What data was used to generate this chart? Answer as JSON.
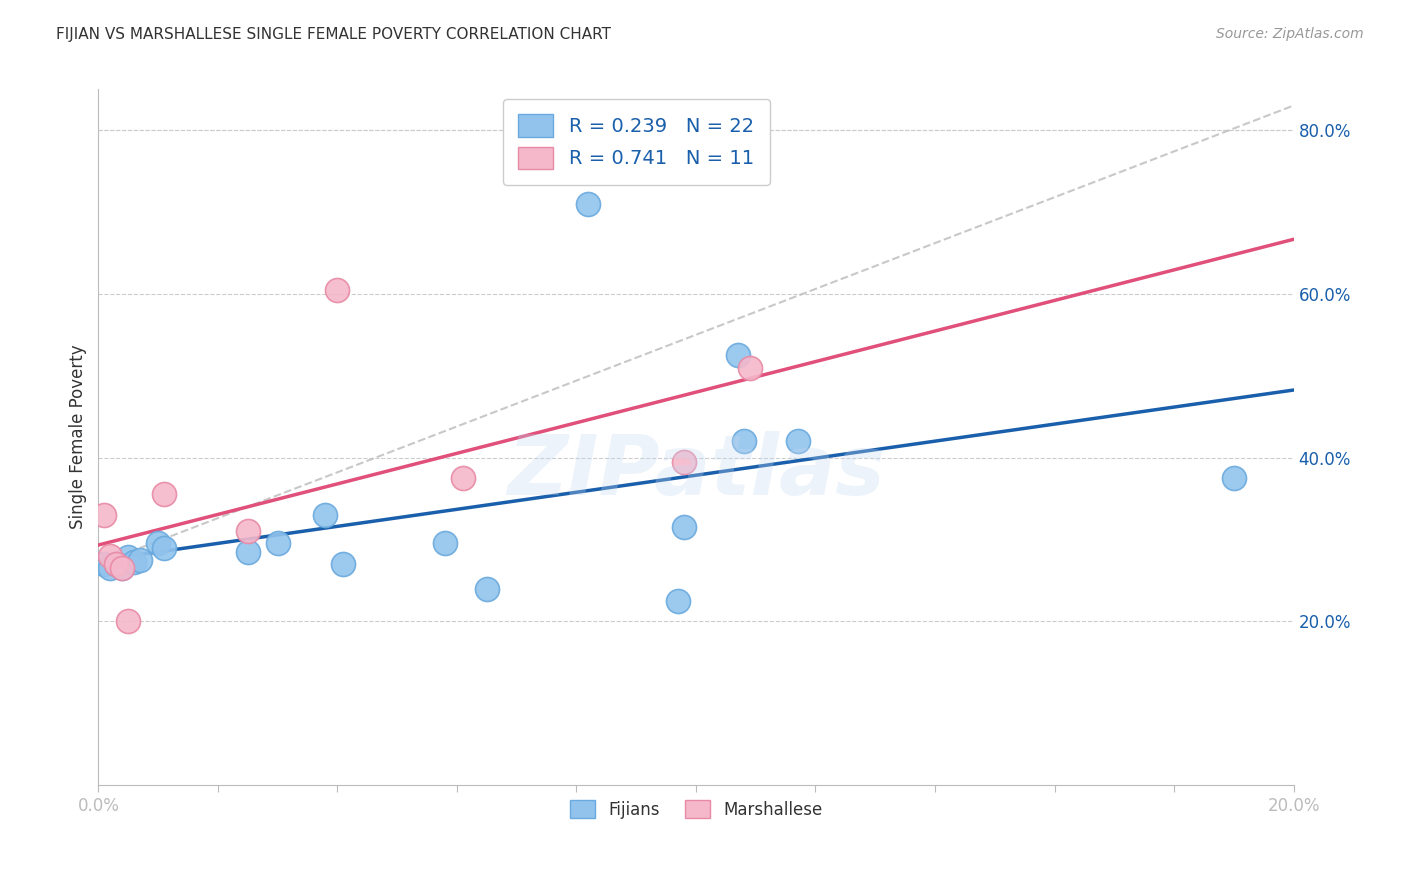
{
  "title": "FIJIAN VS MARSHALLESE SINGLE FEMALE POVERTY CORRELATION CHART",
  "source": "Source: ZipAtlas.com",
  "ylabel_label": "Single Female Poverty",
  "xlim": [
    0.0,
    0.2
  ],
  "ylim": [
    0.0,
    0.85
  ],
  "xtick_positions": [
    0.0,
    0.02,
    0.04,
    0.06,
    0.08,
    0.1,
    0.12,
    0.14,
    0.16,
    0.18,
    0.2
  ],
  "xtick_labels_show": [
    "0.0%",
    "",
    "",
    "",
    "",
    "",
    "",
    "",
    "",
    "",
    "20.0%"
  ],
  "ytick_positions": [
    0.2,
    0.4,
    0.6,
    0.8
  ],
  "ytick_labels": [
    "20.0%",
    "40.0%",
    "60.0%",
    "80.0%"
  ],
  "fijians_x": [
    0.001,
    0.002,
    0.003,
    0.004,
    0.005,
    0.006,
    0.007,
    0.01,
    0.011,
    0.025,
    0.03,
    0.038,
    0.041,
    0.058,
    0.065,
    0.082,
    0.097,
    0.098,
    0.107,
    0.108,
    0.117,
    0.19
  ],
  "fijians_y": [
    0.27,
    0.265,
    0.27,
    0.265,
    0.278,
    0.272,
    0.275,
    0.295,
    0.29,
    0.285,
    0.295,
    0.33,
    0.27,
    0.295,
    0.24,
    0.71,
    0.225,
    0.315,
    0.525,
    0.42,
    0.42,
    0.375
  ],
  "marshallese_x": [
    0.001,
    0.002,
    0.003,
    0.004,
    0.005,
    0.011,
    0.025,
    0.04,
    0.061,
    0.098,
    0.109
  ],
  "marshallese_y": [
    0.33,
    0.28,
    0.27,
    0.265,
    0.2,
    0.355,
    0.31,
    0.605,
    0.375,
    0.395,
    0.51
  ],
  "fijian_color": "#91C3ED",
  "fijian_edge_color": "#6AAADE",
  "marshallese_color": "#F5B8CB",
  "marshallese_edge_color": "#E88AA5",
  "fijian_line_color": "#1A5FAB",
  "marshallese_line_color": "#E0507A",
  "dashed_line_color": "#BBBBBB",
  "R_fijian": "0.239",
  "N_fijian": "22",
  "R_marshallese": "0.741",
  "N_marshallese": "11",
  "watermark": "ZIPatlas",
  "legend_fijian_label": "Fijians",
  "legend_marshallese_label": "Marshallese",
  "marker_size": 300,
  "background_color": "#FFFFFF",
  "grid_color": "#CCCCCC",
  "title_color": "#333333",
  "axis_label_color": "#1A5FAB",
  "source_color": "#999999"
}
